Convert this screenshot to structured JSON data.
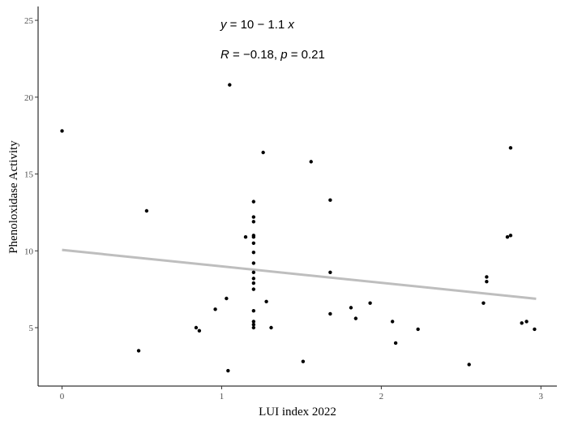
{
  "chart_data": {
    "type": "scatter",
    "title": "",
    "xlabel": "LUI index 2022",
    "ylabel": "Phenoloxidase Activity",
    "xlim": [
      -0.15,
      3.1
    ],
    "ylim": [
      1.2,
      25.9
    ],
    "xticks": [
      0,
      1,
      2,
      3
    ],
    "yticks": [
      5,
      10,
      15,
      20,
      25
    ],
    "grid": false,
    "annotations": {
      "equation_lhs": "y",
      "equation_rhs": " = 10 − 1.1 ",
      "equation_var": "x",
      "stats_r_symbol": "R",
      "stats_r_value": " = −0.18, ",
      "stats_p_symbol": "p",
      "stats_p_value": " = 0.21"
    },
    "trend_line": {
      "intercept": 10.06,
      "slope": -1.07,
      "x_range": [
        0,
        2.97
      ],
      "color": "#bebebe"
    },
    "point_color": "#000000",
    "points": [
      [
        0.0,
        17.8
      ],
      [
        0.48,
        3.5
      ],
      [
        0.53,
        12.6
      ],
      [
        0.84,
        5.0
      ],
      [
        0.86,
        4.8
      ],
      [
        0.96,
        6.2
      ],
      [
        1.03,
        6.9
      ],
      [
        1.04,
        2.2
      ],
      [
        1.05,
        20.8
      ],
      [
        1.15,
        10.9
      ],
      [
        1.2,
        13.2
      ],
      [
        1.2,
        12.2
      ],
      [
        1.2,
        11.9
      ],
      [
        1.2,
        11.0
      ],
      [
        1.2,
        10.9
      ],
      [
        1.2,
        10.5
      ],
      [
        1.2,
        9.9
      ],
      [
        1.2,
        9.2
      ],
      [
        1.2,
        8.6
      ],
      [
        1.2,
        8.2
      ],
      [
        1.2,
        7.9
      ],
      [
        1.2,
        7.5
      ],
      [
        1.2,
        6.1
      ],
      [
        1.2,
        5.4
      ],
      [
        1.2,
        5.2
      ],
      [
        1.2,
        5.0
      ],
      [
        1.26,
        16.4
      ],
      [
        1.28,
        6.7
      ],
      [
        1.31,
        5.0
      ],
      [
        1.51,
        2.8
      ],
      [
        1.56,
        15.8
      ],
      [
        1.68,
        13.3
      ],
      [
        1.68,
        8.6
      ],
      [
        1.68,
        5.9
      ],
      [
        1.81,
        6.3
      ],
      [
        1.84,
        5.6
      ],
      [
        1.93,
        6.6
      ],
      [
        2.07,
        5.4
      ],
      [
        2.09,
        4.0
      ],
      [
        2.23,
        4.9
      ],
      [
        2.55,
        2.6
      ],
      [
        2.64,
        6.6
      ],
      [
        2.66,
        8.3
      ],
      [
        2.66,
        8.0
      ],
      [
        2.79,
        10.9
      ],
      [
        2.81,
        11.0
      ],
      [
        2.81,
        16.7
      ],
      [
        2.88,
        5.3
      ],
      [
        2.91,
        5.4
      ],
      [
        2.96,
        4.9
      ]
    ]
  }
}
